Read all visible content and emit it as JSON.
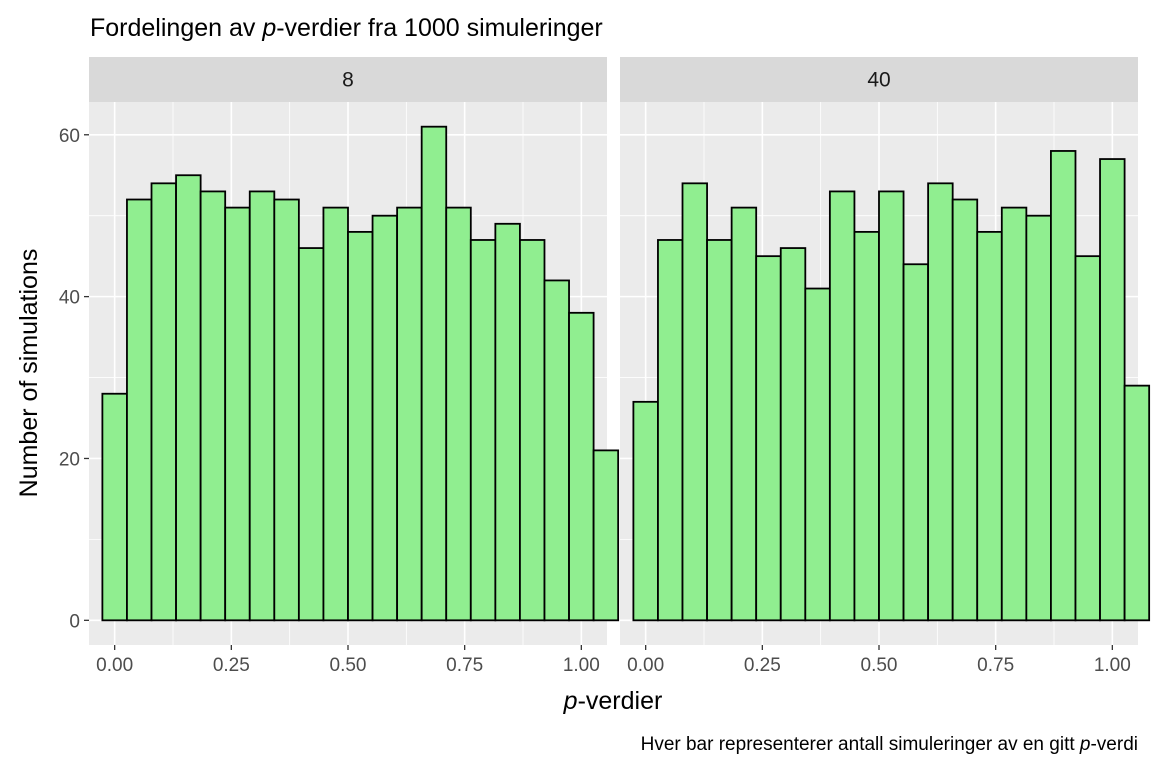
{
  "chart_data": {
    "type": "bar",
    "title_parts": [
      "Fordelingen av ",
      "p",
      "-verdier fra 1000 simuleringer"
    ],
    "xlabel_parts": [
      "p",
      "-verdier"
    ],
    "ylabel": "Number of simulations",
    "caption_parts": [
      "Hver bar representerer antall simuleringer av en gitt ",
      "p",
      "-verdi"
    ],
    "x_ticks": [
      "0.00",
      "0.25",
      "0.50",
      "0.75",
      "1.00"
    ],
    "y_ticks": [
      "0",
      "20",
      "40",
      "60"
    ],
    "xlim": [
      -0.055,
      1.055
    ],
    "ylim": [
      -3.05,
      64.05
    ],
    "bin_width": 0.05263,
    "bar_fill": "#90EE90",
    "bar_stroke": "#000000",
    "panel_bg": "#EBEBEB",
    "strip_bg": "#D9D9D9",
    "panels": [
      {
        "strip": "8",
        "values": [
          28,
          52,
          54,
          55,
          53,
          51,
          53,
          52,
          46,
          51,
          48,
          50,
          51,
          61,
          51,
          47,
          49,
          47,
          42,
          38,
          21
        ]
      },
      {
        "strip": "40",
        "values": [
          27,
          47,
          54,
          47,
          51,
          45,
          46,
          41,
          53,
          48,
          53,
          44,
          54,
          52,
          48,
          51,
          50,
          58,
          45,
          57,
          29
        ]
      }
    ]
  }
}
